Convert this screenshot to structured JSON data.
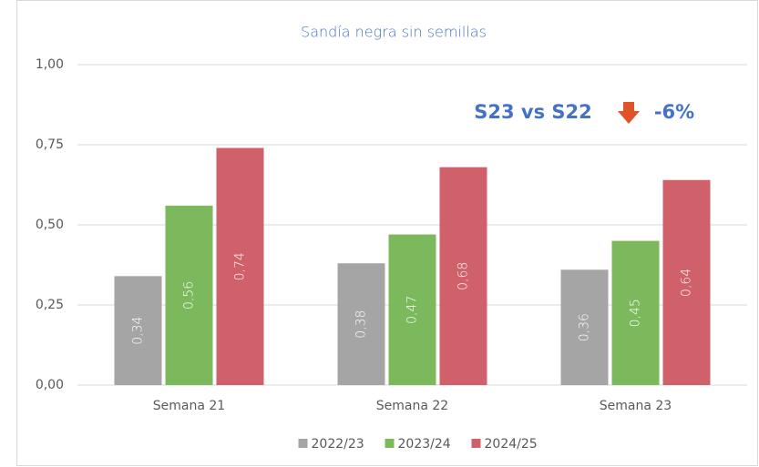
{
  "chart_data": {
    "type": "bar",
    "title": "Sandía negra sin semillas",
    "categories": [
      "Semana 21",
      "Semana 22",
      "Semana 23"
    ],
    "series": [
      {
        "name": "2022/23",
        "color": "#a5a5a5",
        "values": [
          0.34,
          0.38,
          0.36
        ],
        "value_labels": [
          "0,34",
          "0,38",
          "0,36"
        ]
      },
      {
        "name": "2023/24",
        "color": "#7cb95c",
        "values": [
          0.56,
          0.47,
          0.45
        ],
        "value_labels": [
          "0,56",
          "0,47",
          "0,45"
        ]
      },
      {
        "name": "2024/25",
        "color": "#d0606a",
        "values": [
          0.74,
          0.68,
          0.64
        ],
        "value_labels": [
          "0,74",
          "0,68",
          "0,64"
        ]
      }
    ],
    "ylim": [
      0,
      1
    ],
    "yticks": [
      {
        "value": 0,
        "label": "0,00"
      },
      {
        "value": 0.25,
        "label": "0,25"
      },
      {
        "value": 0.5,
        "label": "0,50"
      },
      {
        "value": 0.75,
        "label": "0,75"
      },
      {
        "value": 1,
        "label": "1,00"
      }
    ],
    "grid": true,
    "legend": "bottom",
    "annotation": {
      "text": "S23 vs S22",
      "change": "-6%"
    }
  }
}
